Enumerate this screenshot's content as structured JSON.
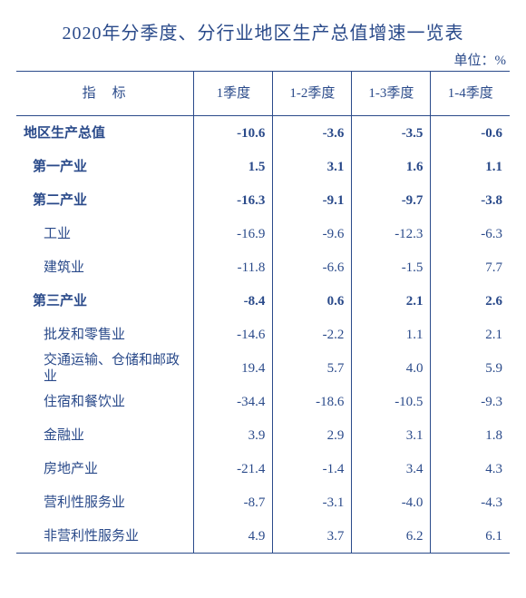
{
  "colors": {
    "text": "#2a4a8a",
    "border": "#2a4a8a",
    "background": "#ffffff"
  },
  "title": "2020年分季度、分行业地区生产总值增速一览表",
  "unit": "单位：%",
  "columns": {
    "indicator": "指标",
    "q1": "1季度",
    "q2": "1-2季度",
    "q3": "1-3季度",
    "q4": "1-4季度"
  },
  "col_widths": {
    "indicator": "36%",
    "q": "16%"
  },
  "rows": [
    {
      "label": "地区生产总值",
      "bold": true,
      "indent": 0,
      "q1": "-10.6",
      "q2": "-3.6",
      "q3": "-3.5",
      "q4": "-0.6"
    },
    {
      "label": "第一产业",
      "bold": true,
      "indent": 1,
      "q1": "1.5",
      "q2": "3.1",
      "q3": "1.6",
      "q4": "1.1"
    },
    {
      "label": "第二产业",
      "bold": true,
      "indent": 1,
      "q1": "-16.3",
      "q2": "-9.1",
      "q3": "-9.7",
      "q4": "-3.8"
    },
    {
      "label": "工业",
      "bold": false,
      "indent": 2,
      "q1": "-16.9",
      "q2": "-9.6",
      "q3": "-12.3",
      "q4": "-6.3"
    },
    {
      "label": "建筑业",
      "bold": false,
      "indent": 2,
      "q1": "-11.8",
      "q2": "-6.6",
      "q3": "-1.5",
      "q4": "7.7"
    },
    {
      "label": "第三产业",
      "bold": true,
      "indent": 1,
      "q1": "-8.4",
      "q2": "0.6",
      "q3": "2.1",
      "q4": "2.6"
    },
    {
      "label": "批发和零售业",
      "bold": false,
      "indent": 2,
      "q1": "-14.6",
      "q2": "-2.2",
      "q3": "1.1",
      "q4": "2.1"
    },
    {
      "label": "交通运输、仓储和邮政业",
      "bold": false,
      "indent": 2,
      "q1": "19.4",
      "q2": "5.7",
      "q3": "4.0",
      "q4": "5.9"
    },
    {
      "label": "住宿和餐饮业",
      "bold": false,
      "indent": 2,
      "q1": "-34.4",
      "q2": "-18.6",
      "q3": "-10.5",
      "q4": "-9.3"
    },
    {
      "label": "金融业",
      "bold": false,
      "indent": 2,
      "q1": "3.9",
      "q2": "2.9",
      "q3": "3.1",
      "q4": "1.8"
    },
    {
      "label": "房地产业",
      "bold": false,
      "indent": 2,
      "q1": "-21.4",
      "q2": "-1.4",
      "q3": "3.4",
      "q4": "4.3"
    },
    {
      "label": "营利性服务业",
      "bold": false,
      "indent": 2,
      "q1": "-8.7",
      "q2": "-3.1",
      "q3": "-4.0",
      "q4": "-4.3"
    },
    {
      "label": "非营利性服务业",
      "bold": false,
      "indent": 2,
      "q1": "4.9",
      "q2": "3.7",
      "q3": "6.2",
      "q4": "6.1"
    }
  ]
}
